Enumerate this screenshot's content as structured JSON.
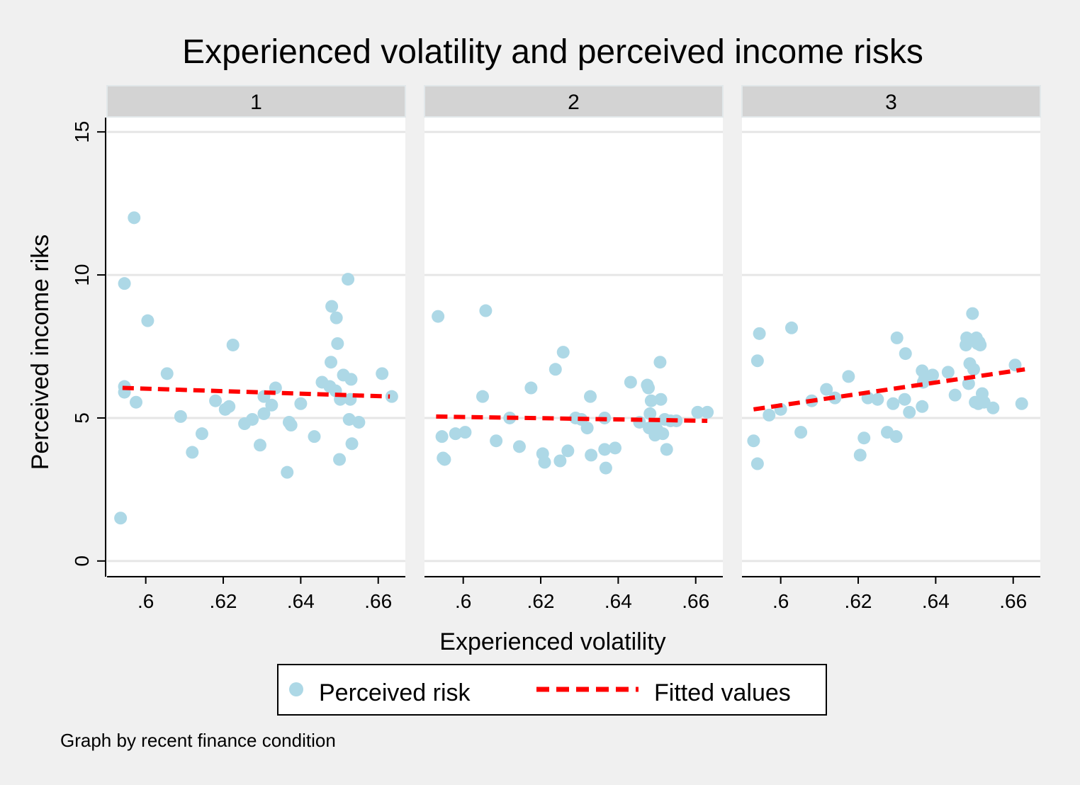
{
  "chart_data": {
    "type": "scatter",
    "title": "Experienced volatility and perceived income risks",
    "xlabel": "Experienced volatility",
    "ylabel": "Perceived income riks",
    "note": "Graph by recent finance condition",
    "xlim": [
      0.59,
      0.667
    ],
    "ylim": [
      -0.5,
      15.5
    ],
    "x_ticks": [
      0.6,
      0.62,
      0.64,
      0.66
    ],
    "x_tick_labels": [
      ".6",
      ".62",
      ".64",
      ".66"
    ],
    "y_ticks": [
      0,
      5,
      10,
      15
    ],
    "y_tick_labels": [
      "0",
      "5",
      "10",
      "15"
    ],
    "grid": true,
    "legend": {
      "position": "bottom",
      "entries": [
        {
          "label": "Perceived risk",
          "kind": "marker",
          "color": "#add8e6"
        },
        {
          "label": "Fitted values",
          "kind": "dashed-line",
          "color": "#ff0000"
        }
      ]
    },
    "colors": {
      "points": "#add8e6",
      "fit": "#ff0000",
      "panel_header": "#d3d3d3",
      "background": "#f0f0f0",
      "grid": "#e6e6e6"
    },
    "panels": [
      {
        "label": "1",
        "fit": [
          [
            0.594,
            6.05
          ],
          [
            0.663,
            5.75
          ]
        ],
        "points": [
          [
            0.5935,
            1.5
          ],
          [
            0.5945,
            9.7
          ],
          [
            0.5945,
            6.1
          ],
          [
            0.5945,
            5.9
          ],
          [
            0.597,
            12.0
          ],
          [
            0.5975,
            5.55
          ],
          [
            0.6005,
            8.4
          ],
          [
            0.6055,
            6.55
          ],
          [
            0.609,
            5.05
          ],
          [
            0.612,
            3.8
          ],
          [
            0.6145,
            4.45
          ],
          [
            0.618,
            5.6
          ],
          [
            0.6205,
            5.3
          ],
          [
            0.6215,
            5.4
          ],
          [
            0.6225,
            7.55
          ],
          [
            0.6255,
            4.8
          ],
          [
            0.6275,
            4.95
          ],
          [
            0.6295,
            4.05
          ],
          [
            0.6305,
            5.15
          ],
          [
            0.6305,
            5.75
          ],
          [
            0.6325,
            5.45
          ],
          [
            0.6335,
            6.05
          ],
          [
            0.6365,
            3.1
          ],
          [
            0.637,
            4.85
          ],
          [
            0.6375,
            4.75
          ],
          [
            0.64,
            5.5
          ],
          [
            0.6435,
            4.35
          ],
          [
            0.6455,
            6.25
          ],
          [
            0.6475,
            6.1
          ],
          [
            0.6478,
            6.95
          ],
          [
            0.648,
            8.9
          ],
          [
            0.649,
            5.95
          ],
          [
            0.6492,
            8.5
          ],
          [
            0.6495,
            7.6
          ],
          [
            0.65,
            3.55
          ],
          [
            0.6502,
            5.65
          ],
          [
            0.651,
            6.5
          ],
          [
            0.6522,
            9.85
          ],
          [
            0.6525,
            4.95
          ],
          [
            0.6528,
            5.65
          ],
          [
            0.653,
            6.35
          ],
          [
            0.6532,
            4.1
          ],
          [
            0.655,
            4.85
          ],
          [
            0.661,
            6.55
          ],
          [
            0.6635,
            5.75
          ]
        ]
      },
      {
        "label": "2",
        "fit": [
          [
            0.593,
            5.05
          ],
          [
            0.663,
            4.9
          ]
        ],
        "points": [
          [
            0.5935,
            8.55
          ],
          [
            0.5945,
            4.35
          ],
          [
            0.5948,
            3.6
          ],
          [
            0.5952,
            3.55
          ],
          [
            0.598,
            4.45
          ],
          [
            0.6005,
            4.5
          ],
          [
            0.605,
            5.75
          ],
          [
            0.6058,
            8.75
          ],
          [
            0.6085,
            4.2
          ],
          [
            0.612,
            5.0
          ],
          [
            0.6145,
            4.0
          ],
          [
            0.6175,
            6.05
          ],
          [
            0.6205,
            3.75
          ],
          [
            0.621,
            3.45
          ],
          [
            0.6238,
            6.7
          ],
          [
            0.625,
            3.5
          ],
          [
            0.6258,
            7.3
          ],
          [
            0.627,
            3.85
          ],
          [
            0.629,
            5.0
          ],
          [
            0.6305,
            4.95
          ],
          [
            0.632,
            4.65
          ],
          [
            0.6328,
            5.75
          ],
          [
            0.633,
            3.7
          ],
          [
            0.6365,
            5.0
          ],
          [
            0.6365,
            3.9
          ],
          [
            0.6368,
            3.25
          ],
          [
            0.6392,
            3.95
          ],
          [
            0.6432,
            6.25
          ],
          [
            0.6455,
            4.85
          ],
          [
            0.6475,
            6.15
          ],
          [
            0.6478,
            6.05
          ],
          [
            0.648,
            4.65
          ],
          [
            0.6482,
            5.15
          ],
          [
            0.6485,
            5.6
          ],
          [
            0.6492,
            4.75
          ],
          [
            0.6495,
            4.4
          ],
          [
            0.65,
            4.6
          ],
          [
            0.6508,
            6.95
          ],
          [
            0.651,
            5.65
          ],
          [
            0.6515,
            4.45
          ],
          [
            0.652,
            4.95
          ],
          [
            0.6525,
            3.9
          ],
          [
            0.6535,
            4.9
          ],
          [
            0.655,
            4.9
          ],
          [
            0.6605,
            5.2
          ],
          [
            0.663,
            5.2
          ]
        ]
      },
      {
        "label": "3",
        "fit": [
          [
            0.593,
            5.3
          ],
          [
            0.663,
            6.7
          ]
        ],
        "points": [
          [
            0.593,
            4.2
          ],
          [
            0.594,
            3.4
          ],
          [
            0.594,
            7.0
          ],
          [
            0.5945,
            7.95
          ],
          [
            0.597,
            5.1
          ],
          [
            0.6,
            5.3
          ],
          [
            0.6028,
            8.15
          ],
          [
            0.6052,
            4.5
          ],
          [
            0.608,
            5.6
          ],
          [
            0.6118,
            6.0
          ],
          [
            0.614,
            5.7
          ],
          [
            0.6175,
            6.45
          ],
          [
            0.6205,
            3.7
          ],
          [
            0.6215,
            4.3
          ],
          [
            0.6225,
            5.7
          ],
          [
            0.625,
            5.65
          ],
          [
            0.6275,
            4.5
          ],
          [
            0.629,
            5.5
          ],
          [
            0.6298,
            4.35
          ],
          [
            0.63,
            7.8
          ],
          [
            0.632,
            5.65
          ],
          [
            0.6322,
            7.25
          ],
          [
            0.6332,
            5.2
          ],
          [
            0.6365,
            5.4
          ],
          [
            0.6365,
            6.65
          ],
          [
            0.6368,
            6.25
          ],
          [
            0.6372,
            6.4
          ],
          [
            0.6392,
            6.5
          ],
          [
            0.6432,
            6.6
          ],
          [
            0.645,
            5.8
          ],
          [
            0.6478,
            7.55
          ],
          [
            0.648,
            7.8
          ],
          [
            0.6485,
            6.2
          ],
          [
            0.6488,
            6.9
          ],
          [
            0.6495,
            8.65
          ],
          [
            0.6498,
            6.7
          ],
          [
            0.6502,
            5.55
          ],
          [
            0.6505,
            7.8
          ],
          [
            0.6508,
            7.6
          ],
          [
            0.651,
            5.5
          ],
          [
            0.6512,
            7.65
          ],
          [
            0.6515,
            7.55
          ],
          [
            0.652,
            5.85
          ],
          [
            0.6525,
            5.55
          ],
          [
            0.6548,
            5.35
          ],
          [
            0.6605,
            6.85
          ],
          [
            0.6622,
            5.5
          ]
        ]
      }
    ]
  }
}
